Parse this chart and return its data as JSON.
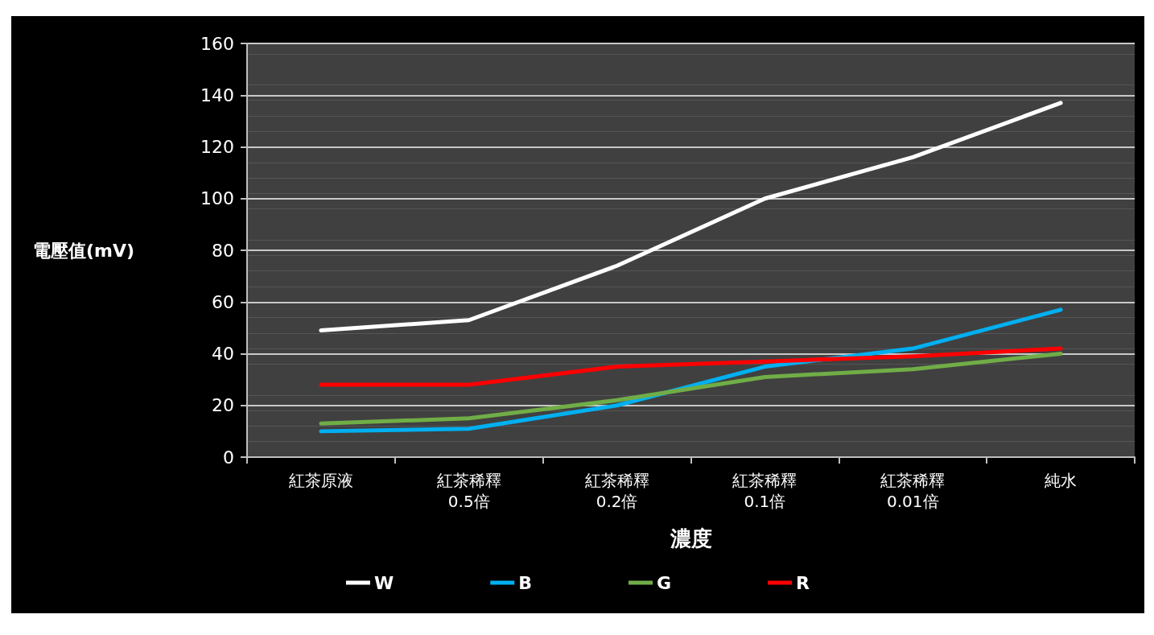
{
  "chart_data": {
    "type": "line",
    "xlabel": "濃度",
    "ylabel": "電壓值(mV)",
    "categories": [
      "紅茶原液",
      "紅茶稀釋\n0.5倍",
      "紅茶稀釋\n0.2倍",
      "紅茶稀釋\n0.1倍",
      "紅茶稀釋\n0.01倍",
      "純水"
    ],
    "series": [
      {
        "name": "W",
        "color": "#ffffff",
        "values": [
          49,
          53,
          74,
          100,
          116,
          137
        ]
      },
      {
        "name": "B",
        "color": "#00b0f0",
        "values": [
          10,
          11,
          20,
          35,
          42,
          57
        ]
      },
      {
        "name": "G",
        "color": "#70ad47",
        "values": [
          13,
          15,
          22,
          31,
          34,
          40
        ]
      },
      {
        "name": "R",
        "color": "#ff0000",
        "values": [
          28,
          28,
          35,
          37,
          39,
          42
        ]
      }
    ],
    "ylim": [
      0,
      160
    ],
    "yticks": [
      0,
      20,
      40,
      60,
      80,
      100,
      120,
      140,
      160
    ],
    "grid": "y",
    "legend": "bottom",
    "marker": "none",
    "line_style": "solid"
  }
}
